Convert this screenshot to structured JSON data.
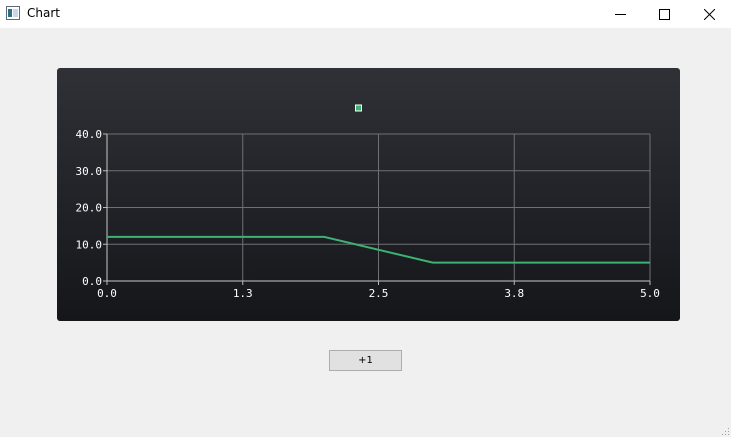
{
  "window": {
    "title": "Chart",
    "icons": {
      "app": "chart-app-icon",
      "minimize": "minimize-icon",
      "maximize": "maximize-icon",
      "close": "close-icon",
      "resize": "resize-grip-icon"
    }
  },
  "chart_data": {
    "type": "line",
    "title": "",
    "xlabel": "",
    "ylabel": "",
    "xlim": [
      0,
      5
    ],
    "ylim": [
      0,
      40
    ],
    "grid": true,
    "legend": "top-center",
    "x_ticks": [
      "0.0",
      "1.3",
      "2.5",
      "3.8",
      "5.0"
    ],
    "y_ticks": [
      "0.0",
      "10.0",
      "20.0",
      "30.0",
      "40.0"
    ],
    "series": [
      {
        "name": "",
        "color": "#3cb371",
        "x": [
          0.0,
          2.0,
          3.0,
          5.0
        ],
        "y": [
          12,
          12,
          5,
          5
        ]
      }
    ]
  },
  "controls": {
    "increment_label": "+1"
  }
}
